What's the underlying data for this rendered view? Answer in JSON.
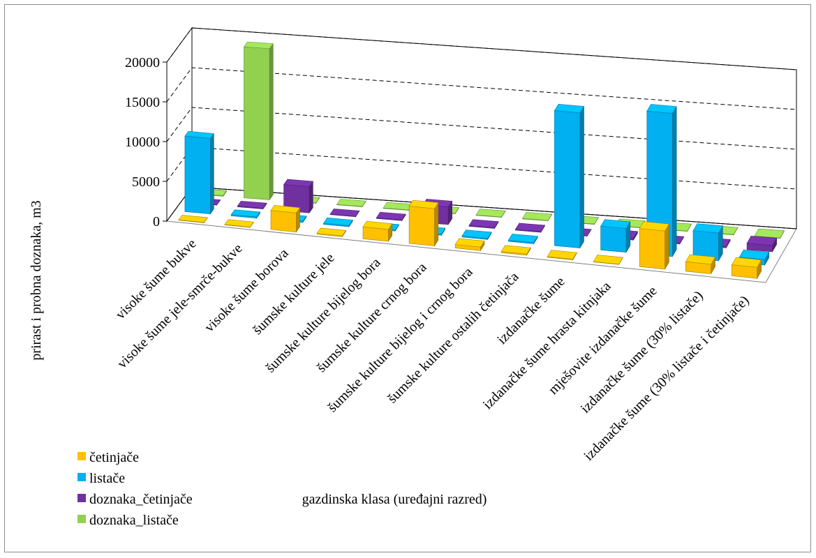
{
  "chart_data": {
    "type": "bar",
    "style": "3d-clustered-depth",
    "ylabel": "prirast i probna doznaka,  m3",
    "xlabel": "gazdinska klasa (uređajni razred)",
    "ylim": [
      0,
      20000
    ],
    "yticks": [
      "0",
      "5000",
      "10000",
      "15000",
      "20000"
    ],
    "grid": "dashed",
    "legend_position": "bottom-left",
    "categories": [
      "visoke šume bukve",
      "visoke šume jele-smrče-bukve",
      "visoke šume borova",
      "šumske kulture jele",
      "šumske kulture bijelog bora",
      "šumske kulture crnog bora",
      "šumske kulture bijelog i crnog bora",
      "šumske kulture ostalih četinjača",
      "izdanačke šume",
      "izdanačke šume hrasta kitnjaka",
      "mješovite izdanačke šume",
      "izdanačke šume (30% listače)",
      "izdanačke šume (30% listače i četinjače)"
    ],
    "series": [
      {
        "name": "četinjače",
        "color": "#FFC000",
        "values": [
          50,
          50,
          2400,
          100,
          1500,
          4700,
          450,
          150,
          100,
          50,
          4800,
          1200,
          1400
        ]
      },
      {
        "name": "listače",
        "color": "#00B0F0",
        "values": [
          9500,
          150,
          150,
          150,
          100,
          150,
          150,
          150,
          17000,
          3000,
          18000,
          3500,
          700
        ]
      },
      {
        "name": "doznaka_četinjače",
        "color": "#7030A0",
        "values": [
          50,
          100,
          3300,
          50,
          100,
          2200,
          100,
          100,
          50,
          250,
          50,
          150,
          800
        ]
      },
      {
        "name": "doznaka_listače",
        "color": "#92D050",
        "values": [
          100,
          19000,
          50,
          50,
          50,
          50,
          50,
          50,
          50,
          50,
          50,
          50,
          50
        ]
      }
    ]
  }
}
